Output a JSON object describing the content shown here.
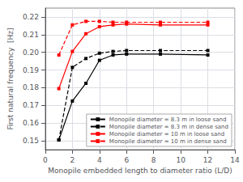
{
  "chart_data": {
    "type": "line",
    "xlabel": "Monopile embedded length to diameter ratio (L/D)",
    "ylabel": "First natural frequency  [Hz]",
    "x": [
      1,
      2,
      3,
      4,
      5,
      6,
      8.5,
      12
    ],
    "series": [
      {
        "name": "Monopile diameter = 8.3 m in loose sand",
        "color": "#000000",
        "line_style": "solid",
        "marker": "square",
        "values": [
          0.1505,
          0.1725,
          0.1825,
          0.1955,
          0.1985,
          0.199,
          0.199,
          0.1985
        ]
      },
      {
        "name": "Monopile diameter = 8.3 m in dense sand",
        "color": "#000000",
        "line_style": "dashed",
        "marker": "square",
        "values": [
          0.1505,
          0.1915,
          0.1965,
          0.1995,
          0.2005,
          0.201,
          0.201,
          0.201
        ]
      },
      {
        "name": "Monopile diameter = 10 m in loose sand",
        "color": "#ff0000",
        "line_style": "solid",
        "marker": "square",
        "values": [
          0.1795,
          0.2005,
          0.2105,
          0.2145,
          0.2155,
          0.216,
          0.2155,
          0.2155
        ]
      },
      {
        "name": "Monopile diameter = 10 m in dense sand",
        "color": "#ff0000",
        "line_style": "dashed",
        "marker": "square",
        "values": [
          0.1985,
          0.2155,
          0.2175,
          0.2175,
          0.217,
          0.217,
          0.217,
          0.217
        ]
      }
    ],
    "xlim": [
      0,
      14
    ],
    "ylim": [
      0.145,
      0.225
    ],
    "xticks": [
      0,
      2,
      4,
      6,
      8,
      10,
      12,
      14
    ],
    "yticks": [
      0.15,
      0.16,
      0.17,
      0.18,
      0.19,
      {
        "value": 0.2,
        "label": "0.20"
      },
      0.21,
      0.22
    ],
    "grid": true,
    "legend": "lower right"
  }
}
